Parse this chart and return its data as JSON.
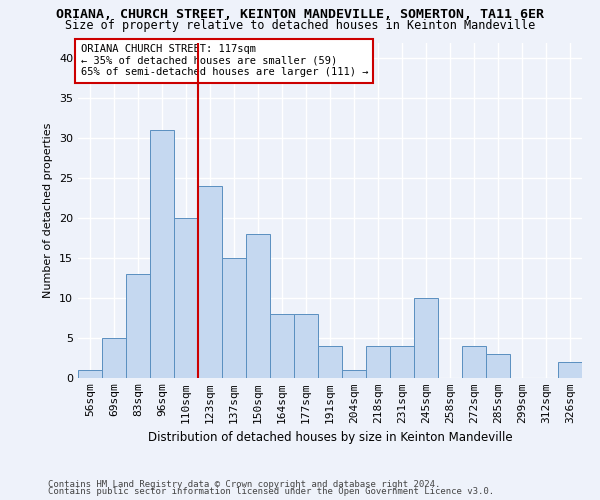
{
  "title_line1": "ORIANA, CHURCH STREET, KEINTON MANDEVILLE, SOMERTON, TA11 6ER",
  "title_line2": "Size of property relative to detached houses in Keinton Mandeville",
  "xlabel": "Distribution of detached houses by size in Keinton Mandeville",
  "ylabel": "Number of detached properties",
  "categories": [
    "56sqm",
    "69sqm",
    "83sqm",
    "96sqm",
    "110sqm",
    "123sqm",
    "137sqm",
    "150sqm",
    "164sqm",
    "177sqm",
    "191sqm",
    "204sqm",
    "218sqm",
    "231sqm",
    "245sqm",
    "258sqm",
    "272sqm",
    "285sqm",
    "299sqm",
    "312sqm",
    "326sqm"
  ],
  "values": [
    1,
    5,
    13,
    31,
    20,
    24,
    15,
    18,
    8,
    8,
    4,
    1,
    4,
    4,
    10,
    0,
    4,
    3,
    0,
    0,
    2
  ],
  "bar_color": "#c5d8f0",
  "bar_edge_color": "#5a8fc0",
  "vline_x": 4.5,
  "vline_color": "#cc0000",
  "annotation_text": "ORIANA CHURCH STREET: 117sqm\n← 35% of detached houses are smaller (59)\n65% of semi-detached houses are larger (111) →",
  "annotation_box_color": "#ffffff",
  "annotation_box_edge": "#cc0000",
  "ylim": [
    0,
    42
  ],
  "yticks": [
    0,
    5,
    10,
    15,
    20,
    25,
    30,
    35,
    40
  ],
  "footnote1": "Contains HM Land Registry data © Crown copyright and database right 2024.",
  "footnote2": "Contains public sector information licensed under the Open Government Licence v3.0.",
  "background_color": "#eef2fa",
  "grid_color": "#ffffff",
  "title1_fontsize": 9.5,
  "title2_fontsize": 8.5,
  "xlabel_fontsize": 8.5,
  "ylabel_fontsize": 8,
  "tick_fontsize": 8,
  "annot_fontsize": 7.5,
  "footnote_fontsize": 6.5
}
